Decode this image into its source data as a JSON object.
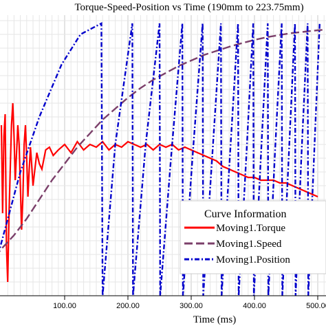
{
  "chart_data": {
    "type": "line",
    "title": "Torque-Speed-Position vs Time (190mm to 223.75mm)",
    "xlabel": "Time (ms)",
    "ylabel": "",
    "xlim": [
      0,
      500
    ],
    "x_ticks": [
      {
        "value": 100,
        "label": "100.00"
      },
      {
        "value": 200,
        "label": "200.00"
      },
      {
        "value": 300,
        "label": "300.00"
      },
      {
        "value": 400,
        "label": "400.00"
      },
      {
        "value": 500,
        "label": "500.00"
      }
    ],
    "grid": true,
    "legend": {
      "title": "Curve Information",
      "position": "bottom-right"
    },
    "series": [
      {
        "name": "Moving1.Torque",
        "color": "#ff0000",
        "style": "solid",
        "points": [
          [
            0,
            0.62
          ],
          [
            2,
            0.3
          ],
          [
            4,
            0.58
          ],
          [
            6,
            0.66
          ],
          [
            8,
            0.18
          ],
          [
            10,
            0.05
          ],
          [
            12,
            0.28
          ],
          [
            14,
            0.46
          ],
          [
            16,
            0.62
          ],
          [
            18,
            0.7
          ],
          [
            20,
            0.58
          ],
          [
            22,
            0.42
          ],
          [
            24,
            0.52
          ],
          [
            26,
            0.62
          ],
          [
            28,
            0.55
          ],
          [
            30,
            0.4
          ],
          [
            32,
            0.24
          ],
          [
            34,
            0.36
          ],
          [
            36,
            0.55
          ],
          [
            38,
            0.62
          ],
          [
            40,
            0.5
          ],
          [
            42,
            0.36
          ],
          [
            44,
            0.46
          ],
          [
            46,
            0.54
          ],
          [
            48,
            0.47
          ],
          [
            50,
            0.4
          ],
          [
            52,
            0.44
          ],
          [
            56,
            0.52
          ],
          [
            60,
            0.48
          ],
          [
            64,
            0.46
          ],
          [
            70,
            0.53
          ],
          [
            76,
            0.54
          ],
          [
            82,
            0.51
          ],
          [
            90,
            0.53
          ],
          [
            100,
            0.55
          ],
          [
            110,
            0.52
          ],
          [
            120,
            0.56
          ],
          [
            130,
            0.53
          ],
          [
            140,
            0.55
          ],
          [
            150,
            0.54
          ],
          [
            160,
            0.56
          ],
          [
            170,
            0.53
          ],
          [
            180,
            0.55
          ],
          [
            190,
            0.54
          ],
          [
            200,
            0.56
          ],
          [
            210,
            0.55
          ],
          [
            220,
            0.54
          ],
          [
            230,
            0.55
          ],
          [
            240,
            0.53
          ],
          [
            250,
            0.55
          ],
          [
            260,
            0.54
          ],
          [
            270,
            0.55
          ],
          [
            280,
            0.53
          ],
          [
            290,
            0.54
          ],
          [
            300,
            0.53
          ],
          [
            310,
            0.52
          ],
          [
            320,
            0.51
          ],
          [
            330,
            0.5
          ],
          [
            340,
            0.49
          ],
          [
            350,
            0.47
          ],
          [
            360,
            0.46
          ],
          [
            370,
            0.45
          ],
          [
            380,
            0.44
          ],
          [
            390,
            0.43
          ],
          [
            400,
            0.43
          ],
          [
            410,
            0.42
          ],
          [
            420,
            0.42
          ],
          [
            430,
            0.42
          ],
          [
            440,
            0.41
          ],
          [
            450,
            0.41
          ],
          [
            460,
            0.4
          ],
          [
            470,
            0.39
          ],
          [
            480,
            0.38
          ],
          [
            490,
            0.37
          ],
          [
            500,
            0.36
          ]
        ]
      },
      {
        "name": "Moving1.Speed",
        "color": "#7b3f6a",
        "style": "dash",
        "points": [
          [
            -10,
            0.14
          ],
          [
            0,
            0.17
          ],
          [
            20,
            0.22
          ],
          [
            40,
            0.28
          ],
          [
            60,
            0.35
          ],
          [
            80,
            0.42
          ],
          [
            100,
            0.48
          ],
          [
            120,
            0.54
          ],
          [
            140,
            0.59
          ],
          [
            160,
            0.64
          ],
          [
            180,
            0.68
          ],
          [
            200,
            0.72
          ],
          [
            220,
            0.755
          ],
          [
            240,
            0.785
          ],
          [
            260,
            0.81
          ],
          [
            280,
            0.835
          ],
          [
            300,
            0.855
          ],
          [
            320,
            0.875
          ],
          [
            340,
            0.89
          ],
          [
            360,
            0.905
          ],
          [
            380,
            0.918
          ],
          [
            400,
            0.93
          ],
          [
            420,
            0.94
          ],
          [
            440,
            0.948
          ],
          [
            460,
            0.955
          ],
          [
            480,
            0.96
          ],
          [
            500,
            0.965
          ],
          [
            510,
            0.967
          ]
        ]
      },
      {
        "name": "Moving1.Position",
        "color": "#0000cc",
        "style": "dashdot",
        "points": [
          [
            -5,
            0.15
          ],
          [
            30,
            0.45
          ],
          [
            60,
            0.65
          ],
          [
            95,
            0.84
          ],
          [
            125,
            0.95
          ],
          [
            158,
            0.99
          ],
          [
            160,
            0.0
          ],
          [
            180,
            0.55
          ],
          [
            207,
            0.99
          ],
          [
            208,
            0.0
          ],
          [
            228,
            0.55
          ],
          [
            250,
            0.99
          ],
          [
            251,
            0.0
          ],
          [
            268,
            0.5
          ],
          [
            286,
            0.99
          ],
          [
            287,
            0.0
          ],
          [
            302,
            0.5
          ],
          [
            318,
            0.99
          ],
          [
            319,
            0.0
          ],
          [
            333,
            0.5
          ],
          [
            347,
            0.99
          ],
          [
            348,
            0.0
          ],
          [
            361,
            0.5
          ],
          [
            374,
            0.99
          ],
          [
            375,
            0.0
          ],
          [
            387,
            0.5
          ],
          [
            398,
            0.99
          ],
          [
            399,
            0.0
          ],
          [
            410,
            0.5
          ],
          [
            421,
            0.99
          ],
          [
            422,
            0.0
          ],
          [
            432,
            0.5
          ],
          [
            443,
            0.99
          ],
          [
            444,
            0.0
          ],
          [
            454,
            0.5
          ],
          [
            464,
            0.99
          ],
          [
            465,
            0.0
          ],
          [
            474,
            0.5
          ],
          [
            484,
            0.99
          ],
          [
            485,
            0.0
          ],
          [
            494,
            0.5
          ],
          [
            503,
            0.99
          ]
        ]
      }
    ]
  }
}
